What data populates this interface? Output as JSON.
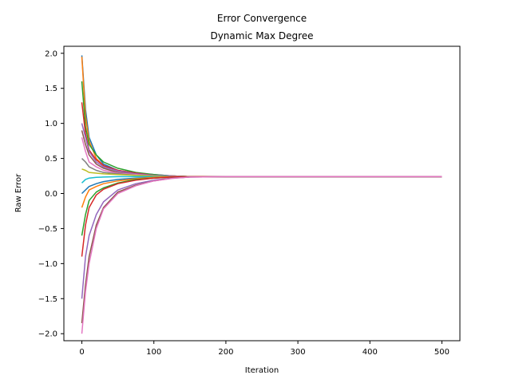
{
  "chart_data": {
    "type": "line",
    "title": "Error Convergence",
    "subtitle": "Dynamic Max Degree",
    "xlabel": "Iteration",
    "ylabel": "Raw Error",
    "xlim": [
      -25,
      525
    ],
    "ylim": [
      -2.1,
      2.1
    ],
    "xticks": [
      0,
      100,
      200,
      300,
      400,
      500
    ],
    "xtick_labels": [
      "0",
      "100",
      "200",
      "300",
      "400",
      "500"
    ],
    "yticks": [
      -2.0,
      -1.5,
      -1.0,
      -0.5,
      0.0,
      0.5,
      1.0,
      1.5,
      2.0
    ],
    "ytick_labels": [
      "−2.0",
      "−1.5",
      "−1.0",
      "−0.5",
      "0.0",
      "0.5",
      "1.0",
      "1.5",
      "2.0"
    ],
    "grid": false,
    "legend": "none",
    "converged_value": 0.24,
    "x": [
      0,
      5,
      10,
      20,
      30,
      50,
      75,
      100,
      125,
      150,
      200,
      300,
      400,
      500
    ],
    "colors": [
      "#1f77b4",
      "#ff7f0e",
      "#2ca02c",
      "#d62728",
      "#9467bd",
      "#8c564b",
      "#e377c2",
      "#7f7f7f",
      "#bcbd22",
      "#17becf"
    ],
    "series": [
      {
        "values": [
          1.97,
          1.2,
          0.8,
          0.55,
          0.42,
          0.33,
          0.29,
          0.27,
          0.25,
          0.24,
          0.24,
          0.24,
          0.24,
          0.24
        ]
      },
      {
        "values": [
          1.95,
          1.1,
          0.75,
          0.5,
          0.4,
          0.32,
          0.28,
          0.26,
          0.25,
          0.24,
          0.24,
          0.24,
          0.24,
          0.24
        ]
      },
      {
        "values": [
          1.6,
          0.95,
          0.7,
          0.55,
          0.45,
          0.36,
          0.3,
          0.27,
          0.25,
          0.24,
          0.24,
          0.24,
          0.24,
          0.24
        ]
      },
      {
        "values": [
          1.3,
          0.85,
          0.62,
          0.48,
          0.4,
          0.33,
          0.29,
          0.26,
          0.25,
          0.24,
          0.24,
          0.24,
          0.24,
          0.24
        ]
      },
      {
        "values": [
          1.0,
          0.8,
          0.6,
          0.45,
          0.38,
          0.32,
          0.28,
          0.26,
          0.25,
          0.24,
          0.24,
          0.24,
          0.24,
          0.24
        ]
      },
      {
        "values": [
          0.9,
          0.7,
          0.55,
          0.42,
          0.36,
          0.3,
          0.27,
          0.25,
          0.24,
          0.24,
          0.24,
          0.24,
          0.24,
          0.24
        ]
      },
      {
        "values": [
          0.8,
          0.6,
          0.45,
          0.38,
          0.33,
          0.29,
          0.27,
          0.25,
          0.24,
          0.24,
          0.24,
          0.24,
          0.24,
          0.24
        ]
      },
      {
        "values": [
          0.5,
          0.45,
          0.38,
          0.33,
          0.3,
          0.28,
          0.26,
          0.25,
          0.24,
          0.24,
          0.24,
          0.24,
          0.24,
          0.24
        ]
      },
      {
        "values": [
          0.35,
          0.33,
          0.3,
          0.29,
          0.28,
          0.27,
          0.26,
          0.25,
          0.24,
          0.24,
          0.24,
          0.24,
          0.24,
          0.24
        ]
      },
      {
        "values": [
          0.15,
          0.2,
          0.22,
          0.23,
          0.235,
          0.24,
          0.24,
          0.24,
          0.24,
          0.24,
          0.24,
          0.24,
          0.24,
          0.24
        ]
      },
      {
        "values": [
          0.0,
          0.05,
          0.1,
          0.14,
          0.17,
          0.2,
          0.22,
          0.23,
          0.24,
          0.24,
          0.24,
          0.24,
          0.24,
          0.24
        ]
      },
      {
        "values": [
          -0.2,
          -0.05,
          0.05,
          0.1,
          0.14,
          0.18,
          0.21,
          0.23,
          0.24,
          0.24,
          0.24,
          0.24,
          0.24,
          0.24
        ]
      },
      {
        "values": [
          -0.6,
          -0.3,
          -0.1,
          0.02,
          0.08,
          0.15,
          0.2,
          0.22,
          0.235,
          0.24,
          0.24,
          0.24,
          0.24,
          0.24
        ]
      },
      {
        "values": [
          -0.9,
          -0.45,
          -0.2,
          -0.02,
          0.06,
          0.14,
          0.19,
          0.22,
          0.235,
          0.24,
          0.24,
          0.24,
          0.24,
          0.24
        ]
      },
      {
        "values": [
          -1.5,
          -0.9,
          -0.6,
          -0.3,
          -0.12,
          0.05,
          0.14,
          0.19,
          0.22,
          0.235,
          0.24,
          0.24,
          0.24,
          0.24
        ]
      },
      {
        "values": [
          -1.85,
          -1.3,
          -0.9,
          -0.45,
          -0.2,
          0.02,
          0.12,
          0.18,
          0.22,
          0.235,
          0.24,
          0.24,
          0.24,
          0.24
        ]
      },
      {
        "values": [
          -2.0,
          -1.4,
          -1.0,
          -0.5,
          -0.22,
          0.0,
          0.11,
          0.18,
          0.215,
          0.235,
          0.24,
          0.24,
          0.24,
          0.24
        ]
      }
    ]
  }
}
